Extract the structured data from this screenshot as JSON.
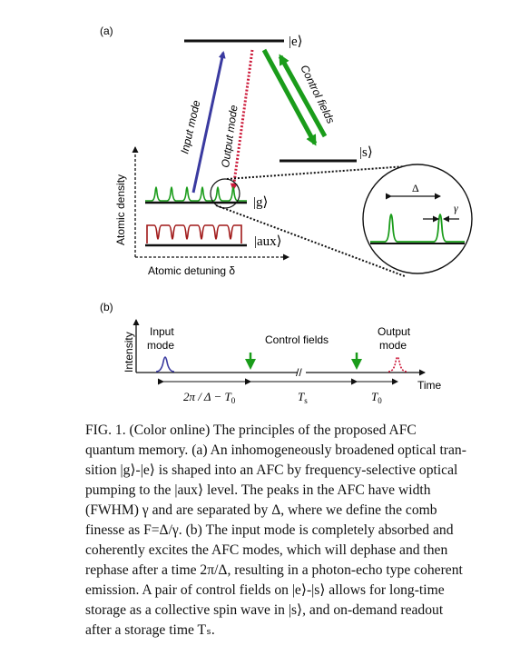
{
  "figure": {
    "panel_a": {
      "label": "(a)",
      "state_e": "|e⟩",
      "state_s": "|s⟩",
      "state_g": "|g⟩",
      "state_aux": "|aux⟩",
      "input_mode": "Input mode",
      "output_mode": "Output mode",
      "control_fields": "Control fields",
      "y_axis": "Atomic density",
      "x_axis": "Atomic detuning δ",
      "delta": "Δ",
      "gamma": "γ"
    },
    "panel_b": {
      "label": "(b)",
      "y_axis": "Intensity",
      "x_axis": "Time",
      "input_mode": [
        "Input",
        "mode"
      ],
      "control_fields": "Control fields",
      "output_mode": [
        "Output",
        "mode"
      ],
      "interval_1": "2π / Δ − T",
      "interval_1_sub": "0",
      "interval_2": "T",
      "interval_2_sub": "s",
      "interval_3": "T",
      "interval_3_sub": "0"
    },
    "colors": {
      "green": "#1a9c1a",
      "blue": "#3a3aa0",
      "red": "#cc1a3a",
      "dark_red": "#a01818"
    }
  },
  "caption": {
    "lines": [
      "FIG. 1. (Color online) The principles of the proposed AFC",
      "quantum memory. (a) An inhomogeneously broadened optical tran-",
      "sition |g⟩-|e⟩ is shaped into an AFC by frequency-selective optical",
      "pumping to the |aux⟩ level. The peaks in the AFC have width",
      "(FWHM) γ and are separated by Δ, where we define the comb",
      "finesse as F=Δ/γ. (b) The input mode is completely absorbed and",
      "coherently excites the AFC modes, which will dephase and then",
      "rephase after a time 2π/Δ, resulting in a photon-echo type coherent",
      "emission. A pair of control fields on |e⟩-|s⟩ allows for long-time",
      "storage as a collective spin wave in |s⟩, and on-demand readout",
      "after a storage time Tₛ."
    ]
  }
}
